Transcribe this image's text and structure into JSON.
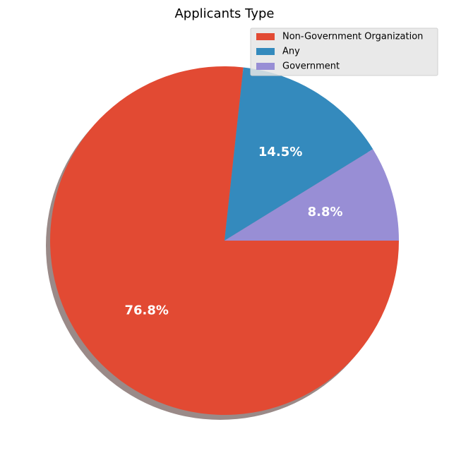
{
  "chart_data": {
    "type": "pie",
    "title": "Applicants Type",
    "start_angle_deg": 0,
    "counterclock": false,
    "shadow": true,
    "legend_position": "top-right",
    "slices": [
      {
        "label": "Non-Government Organization",
        "value": 76.8,
        "display": "76.8%",
        "color": "#E24A33"
      },
      {
        "label": "Any",
        "value": 14.5,
        "display": "14.5%",
        "color": "#348ABD"
      },
      {
        "label": "Government",
        "value": 8.8,
        "display": "8.8%",
        "color": "#988ED5"
      }
    ]
  }
}
